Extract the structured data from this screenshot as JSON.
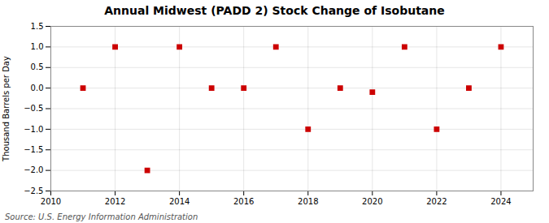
{
  "chart_data": {
    "type": "scatter",
    "title": "Annual Midwest (PADD 2) Stock Change of Isobutane",
    "ylabel": "Thousand Barrels per Day",
    "source": "Source: U.S. Energy Information Administration",
    "x": [
      2011,
      2012,
      2013,
      2014,
      2015,
      2016,
      2017,
      2018,
      2019,
      2020,
      2021,
      2022,
      2023,
      2024
    ],
    "values": [
      0.0,
      1.0,
      -2.0,
      1.0,
      0.0,
      0.0,
      1.0,
      -1.0,
      0.0,
      -0.1,
      1.0,
      -1.0,
      0.0,
      1.0
    ],
    "color": "#cc0000",
    "marker": "square",
    "xlim": [
      2010,
      2025
    ],
    "xticks": [
      2010,
      2012,
      2014,
      2016,
      2018,
      2020,
      2022,
      2024
    ],
    "ylim": [
      -2.5,
      1.5
    ],
    "yticks": [
      {
        "value": -2.5,
        "label": "−2.5"
      },
      {
        "value": -2.0,
        "label": "−2.0"
      },
      {
        "value": -1.5,
        "label": "−1.5"
      },
      {
        "value": -1.0,
        "label": "−1.0"
      },
      {
        "value": -0.5,
        "label": "−0.5"
      },
      {
        "value": 0.0,
        "label": "0.0"
      },
      {
        "value": 0.5,
        "label": "0.5"
      },
      {
        "value": 1.0,
        "label": "1.0"
      },
      {
        "value": 1.5,
        "label": "1.5"
      }
    ],
    "grid": true
  }
}
